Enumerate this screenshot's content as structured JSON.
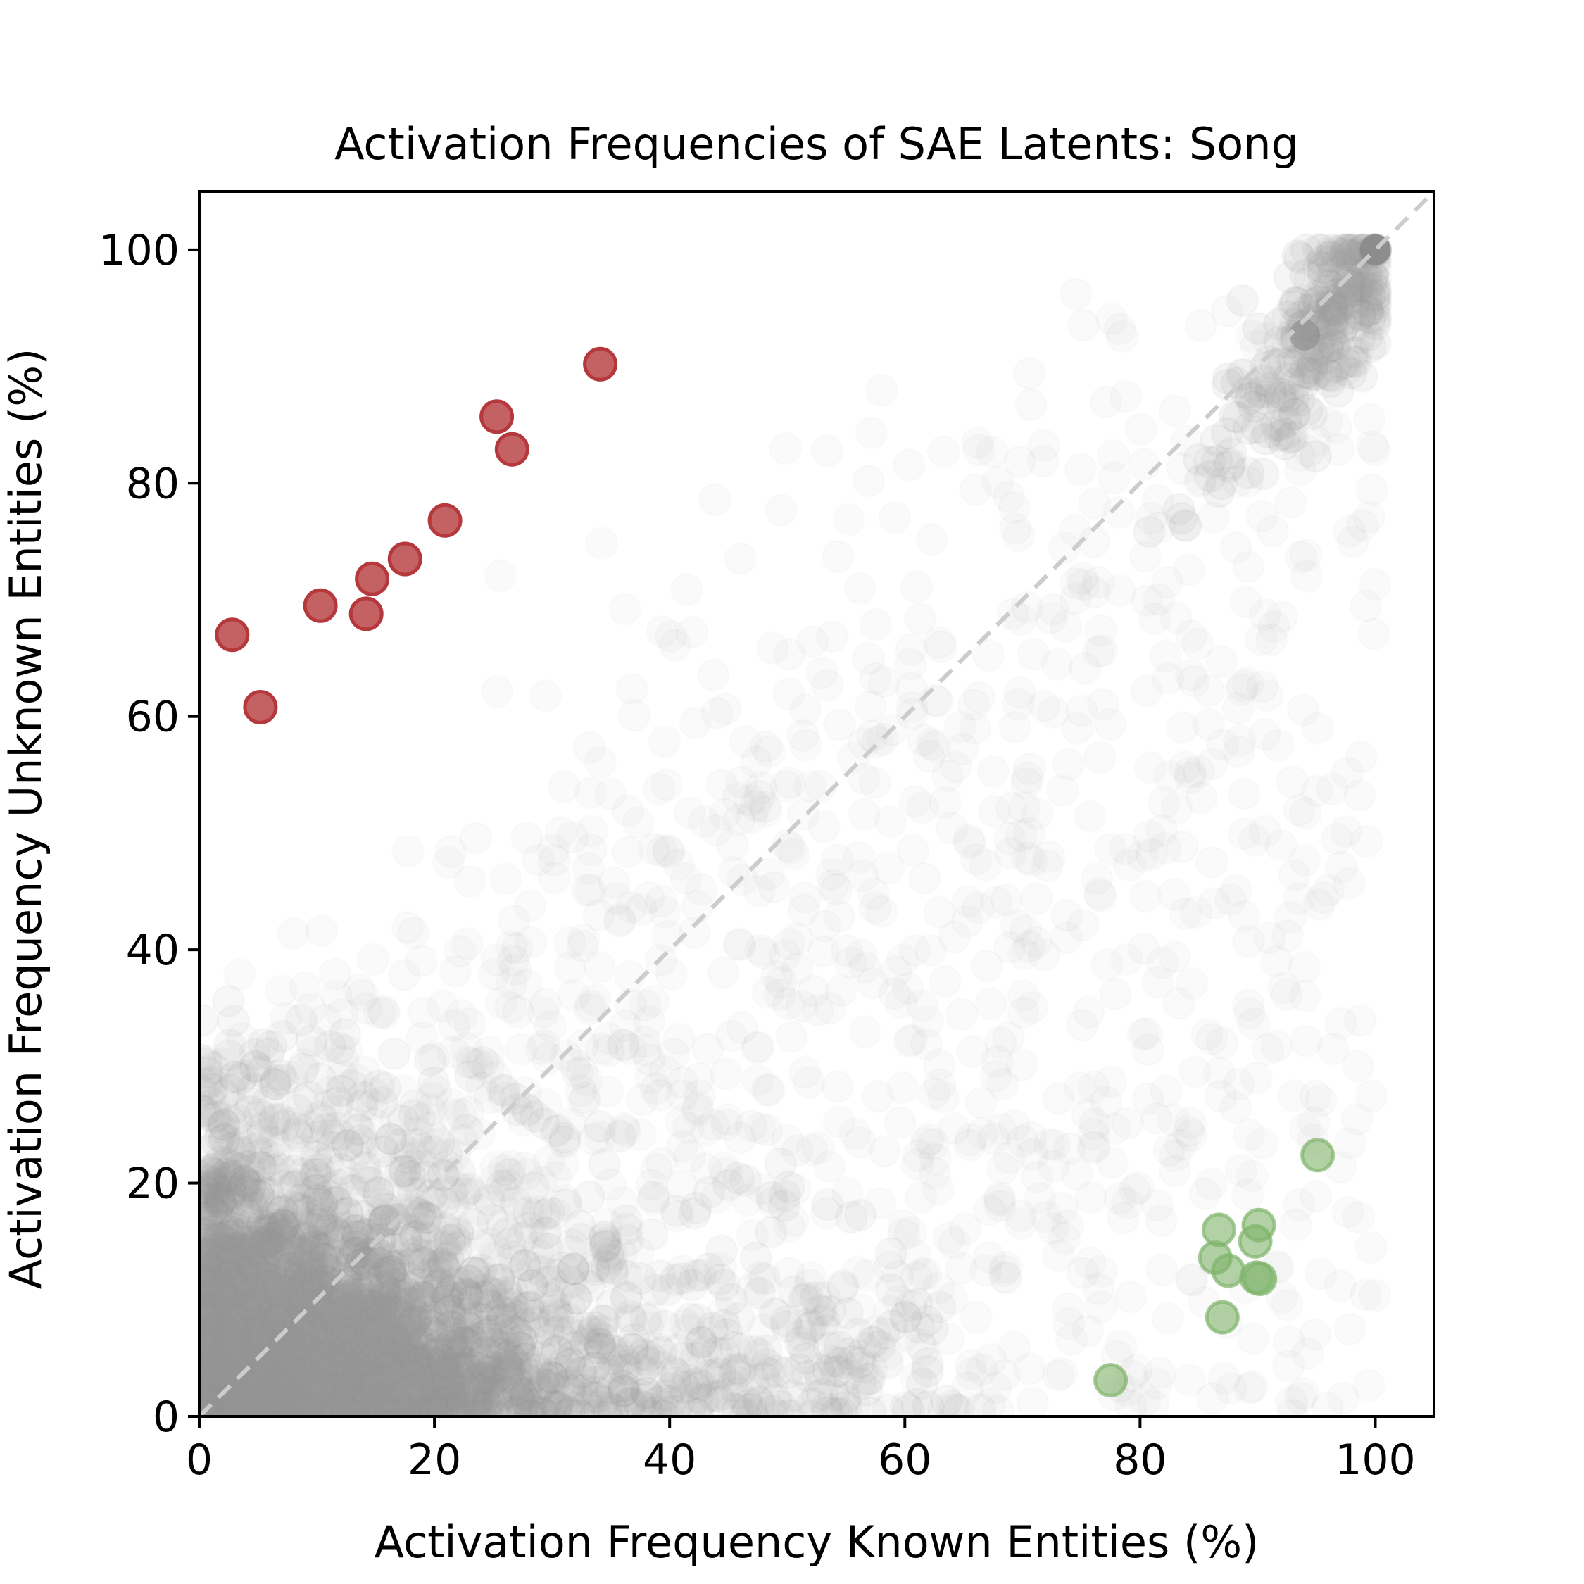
{
  "chart_data": {
    "type": "scatter",
    "title": "Activation Frequencies of SAE Latents: Song",
    "xlabel": "Activation Frequency Known Entities (%)",
    "ylabel": "Activation Frequency Unknown Entities (%)",
    "xlim": [
      0,
      105
    ],
    "ylim": [
      0,
      105
    ],
    "xticks": [
      "0",
      "20",
      "40",
      "60",
      "80",
      "100"
    ],
    "yticks": [
      "0",
      "20",
      "40",
      "60",
      "80",
      "100"
    ],
    "grid": false,
    "legend": "none",
    "reference_line": {
      "from": [
        0,
        0
      ],
      "to": [
        105,
        105
      ],
      "style": "dashed",
      "color": "#cccccc"
    },
    "colors": {
      "background_points": "#999999",
      "unknown_highlight": "#b5393c",
      "known_highlight": "#7fb46b"
    },
    "series": [
      {
        "role": "unknown-entity-latents",
        "color": "#b5393c",
        "points": [
          [
            2.8,
            67.0
          ],
          [
            5.2,
            60.8
          ],
          [
            10.3,
            69.5
          ],
          [
            14.2,
            68.8
          ],
          [
            14.7,
            71.8
          ],
          [
            17.5,
            73.5
          ],
          [
            20.9,
            76.8
          ],
          [
            25.3,
            85.7
          ],
          [
            26.6,
            82.9
          ],
          [
            34.1,
            90.2
          ]
        ]
      },
      {
        "role": "known-entity-latents",
        "color": "#7fb46b",
        "points": [
          [
            77.5,
            3.1
          ],
          [
            86.4,
            13.6
          ],
          [
            86.7,
            16.0
          ],
          [
            87.0,
            8.5
          ],
          [
            87.5,
            12.5
          ],
          [
            89.8,
            15.0
          ],
          [
            89.9,
            11.9
          ],
          [
            90.1,
            16.4
          ],
          [
            90.2,
            11.8
          ],
          [
            95.1,
            22.4
          ]
        ]
      }
    ]
  }
}
